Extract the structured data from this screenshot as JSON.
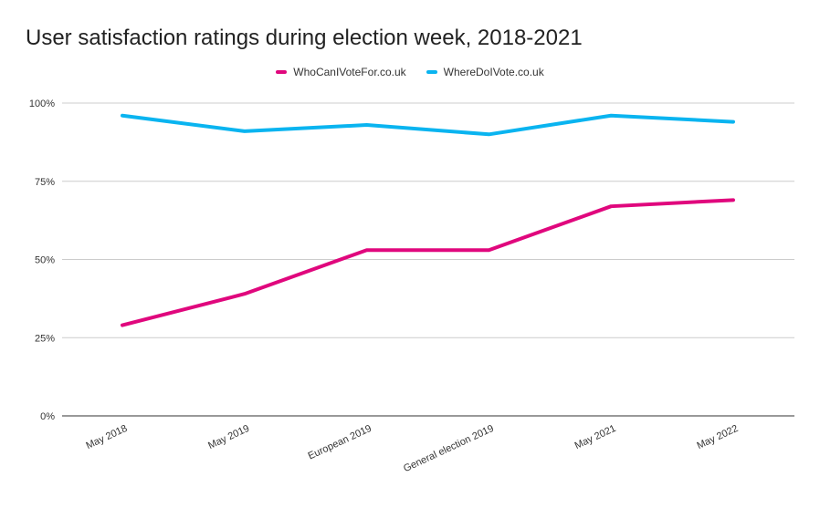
{
  "chart_data": {
    "type": "line",
    "title": "User satisfaction ratings during election week, 2018-2021",
    "xlabel": "",
    "ylabel": "",
    "categories": [
      "May 2018",
      "May 2019",
      "European 2019",
      "General election 2019",
      "May 2021",
      "May 2022"
    ],
    "ylim": [
      0,
      100
    ],
    "yticks": [
      0,
      25,
      50,
      75,
      100
    ],
    "ytick_labels": [
      "0%",
      "25%",
      "50%",
      "75%",
      "100%"
    ],
    "grid": true,
    "legend_position": "top-center",
    "series": [
      {
        "name": "WhoCanIVoteFor.co.uk",
        "color": "#e0077d",
        "values": [
          29,
          39,
          53,
          53,
          67,
          69
        ]
      },
      {
        "name": "WhereDoIVote.co.uk",
        "color": "#0ab4f0",
        "values": [
          96,
          91,
          93,
          90,
          96,
          94
        ]
      }
    ]
  }
}
